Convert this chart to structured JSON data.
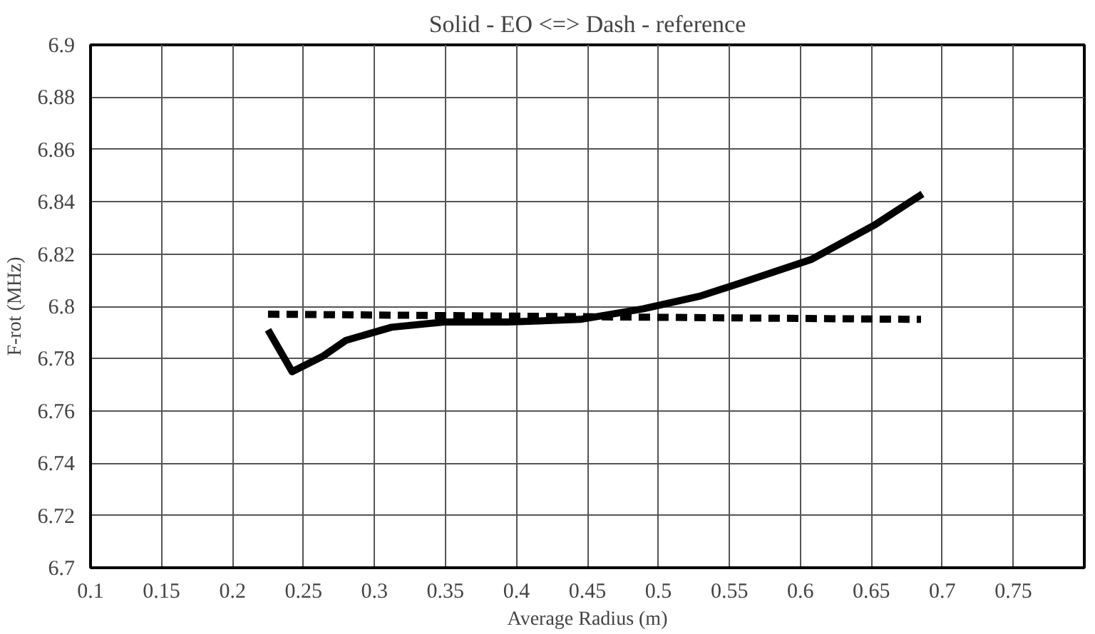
{
  "chart_data": {
    "type": "line",
    "title": "Solid - EO <=> Dash - reference",
    "xlabel": "Average Radius (m)",
    "ylabel": "F-rot (MHz)",
    "series": [
      {
        "color": "#000000",
        "line_style": "solid",
        "x": [
          0.225,
          0.242,
          0.264,
          0.28,
          0.312,
          0.349,
          0.394,
          0.445,
          0.489,
          0.53,
          0.564,
          0.608,
          0.652,
          0.686
        ],
        "values": [
          6.791,
          6.775,
          6.781,
          6.787,
          6.792,
          6.794,
          6.794,
          6.795,
          6.799,
          6.804,
          6.81,
          6.818,
          6.831,
          6.843
        ]
      },
      {
        "color": "#000000",
        "line_style": "dashed",
        "x": [
          0.225,
          0.685
        ],
        "values": [
          6.797,
          6.795
        ]
      }
    ],
    "xlim": [
      0.1,
      0.8
    ],
    "xticks": [
      0.1,
      0.15,
      0.2,
      0.25,
      0.3,
      0.35,
      0.4,
      0.45,
      0.5,
      0.55,
      0.6,
      0.65,
      0.7,
      0.75
    ],
    "ylim": [
      6.7,
      6.9
    ],
    "yticks": [
      6.7,
      6.72,
      6.74,
      6.76,
      6.78,
      6.8,
      6.82,
      6.84,
      6.86,
      6.88,
      6.9
    ],
    "grid": true,
    "marker": "none"
  }
}
